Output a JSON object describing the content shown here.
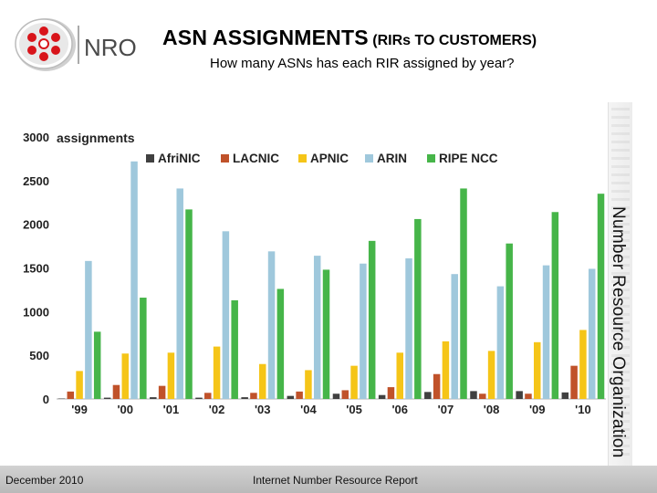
{
  "header": {
    "logo_text": "NRO",
    "title_main": "ASN ASSIGNMENTS",
    "title_suffix": "(RIRs TO CUSTOMERS)",
    "subtitle": "How many ASNs has each RIR assigned by year?"
  },
  "side_label": "Number Resource Organization",
  "footer": {
    "date": "December 2010",
    "report": "Internet Number Resource Report"
  },
  "colors": {
    "AfriNIC": "#404040",
    "LACNIC": "#c0522a",
    "APNIC": "#f5c518",
    "ARIN": "#9fc8dc",
    "RIPE NCC": "#46b549"
  },
  "chart_data": {
    "type": "bar",
    "ylabel": "assignments",
    "ylim": [
      0,
      3000
    ],
    "yticks": [
      "0",
      "500",
      "1000",
      "1500",
      "2000",
      "2500",
      "3000"
    ],
    "grid": false,
    "legend_position": "top",
    "categories": [
      "'99",
      "'00",
      "'01",
      "'02",
      "'03",
      "'04",
      "'05",
      "'06",
      "'07",
      "'08",
      "'09",
      "'10"
    ],
    "series": [
      {
        "name": "AfriNIC",
        "values": [
          5,
          15,
          20,
          15,
          20,
          35,
          60,
          45,
          80,
          90,
          90,
          75
        ]
      },
      {
        "name": "LACNIC",
        "values": [
          85,
          160,
          150,
          70,
          70,
          85,
          100,
          135,
          285,
          60,
          60,
          380
        ]
      },
      {
        "name": "APNIC",
        "values": [
          320,
          520,
          530,
          600,
          400,
          330,
          380,
          530,
          660,
          550,
          650,
          790
        ]
      },
      {
        "name": "ARIN",
        "values": [
          1580,
          2720,
          2410,
          1920,
          1690,
          1640,
          1550,
          1610,
          1430,
          1290,
          1530,
          1490
        ]
      },
      {
        "name": "RIPE NCC",
        "values": [
          770,
          1160,
          2170,
          1130,
          1260,
          1480,
          1810,
          2060,
          2410,
          1780,
          2140,
          2350
        ]
      }
    ]
  }
}
